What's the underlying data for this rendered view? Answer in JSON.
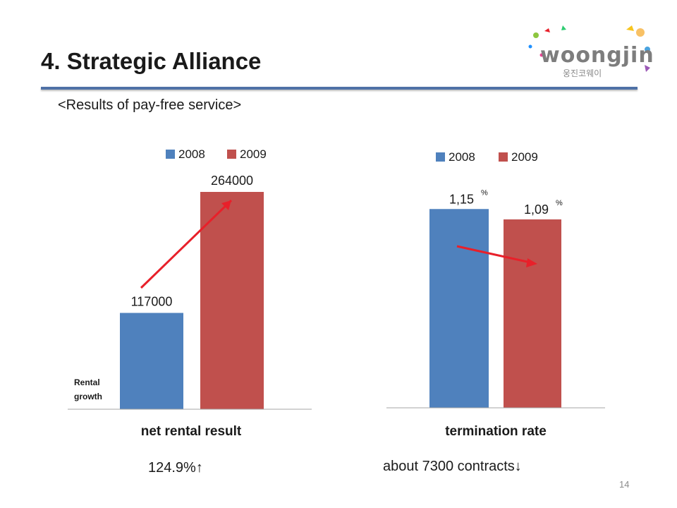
{
  "slide": {
    "title": "4. Strategic Alliance",
    "subtitle": "<Results of pay-free service>",
    "page_number": "14",
    "logo": {
      "brand": "woongjin",
      "korean": "웅진코웨이"
    },
    "notes": {
      "left": "124.9%↑",
      "right": "about 7300 contracts↓"
    }
  },
  "colors": {
    "series_2008": "#4f81bd",
    "series_2009": "#c0504d",
    "arrow": "#e8202a",
    "rule": "#4f71a6"
  },
  "chart_data": [
    {
      "type": "bar",
      "title": "net rental result",
      "legend": [
        "2008",
        "2009"
      ],
      "legend_position": "top",
      "series": [
        {
          "name": "2008",
          "values": [
            117000
          ],
          "label": "117000"
        },
        {
          "name": "2009",
          "values": [
            264000
          ],
          "label": "264000"
        }
      ],
      "annotation": "Rental growth",
      "ylim": [
        0,
        300000
      ],
      "grid": false
    },
    {
      "type": "bar",
      "title": "termination rate",
      "legend": [
        "2008",
        "2009"
      ],
      "legend_position": "top",
      "series": [
        {
          "name": "2008",
          "values": [
            1.15
          ],
          "label": "1,15",
          "unit": "%"
        },
        {
          "name": "2009",
          "values": [
            1.09
          ],
          "label": "1,09",
          "unit": "%"
        }
      ],
      "ylim": [
        0,
        1.4
      ],
      "grid": false
    }
  ]
}
